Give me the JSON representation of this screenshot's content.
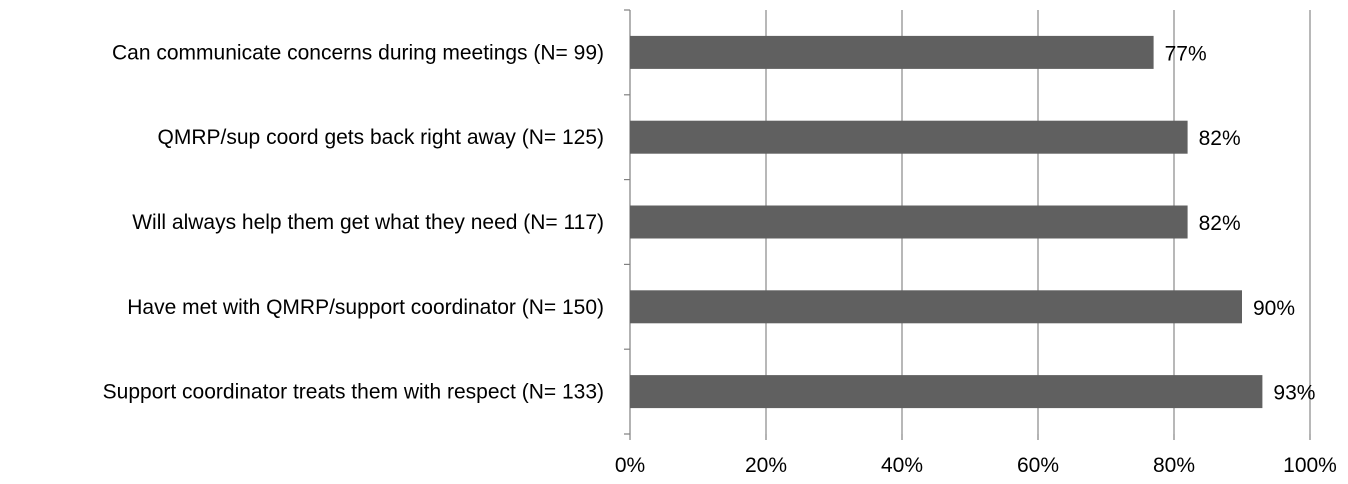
{
  "chart_data": {
    "type": "bar",
    "orientation": "horizontal",
    "categories": [
      "Can communicate concerns during meetings (N= 99)",
      "QMRP/sup coord gets back right away (N= 125)",
      "Will always help them get what they need (N= 117)",
      "Have met with QMRP/support coordinator (N= 150)",
      "Support coordinator treats them with respect (N= 133)"
    ],
    "values": [
      77,
      82,
      82,
      90,
      93
    ],
    "value_labels": [
      "77%",
      "82%",
      "82%",
      "90%",
      "93%"
    ],
    "xlim": [
      0,
      100
    ],
    "x_ticks": [
      0,
      20,
      40,
      60,
      80,
      100
    ],
    "x_tick_labels": [
      "0%",
      "20%",
      "40%",
      "60%",
      "80%",
      "100%"
    ],
    "grid": "vertical",
    "legend": "none",
    "colors": {
      "bar": "#606060",
      "grid": "#888888",
      "axis": "#808080"
    }
  }
}
